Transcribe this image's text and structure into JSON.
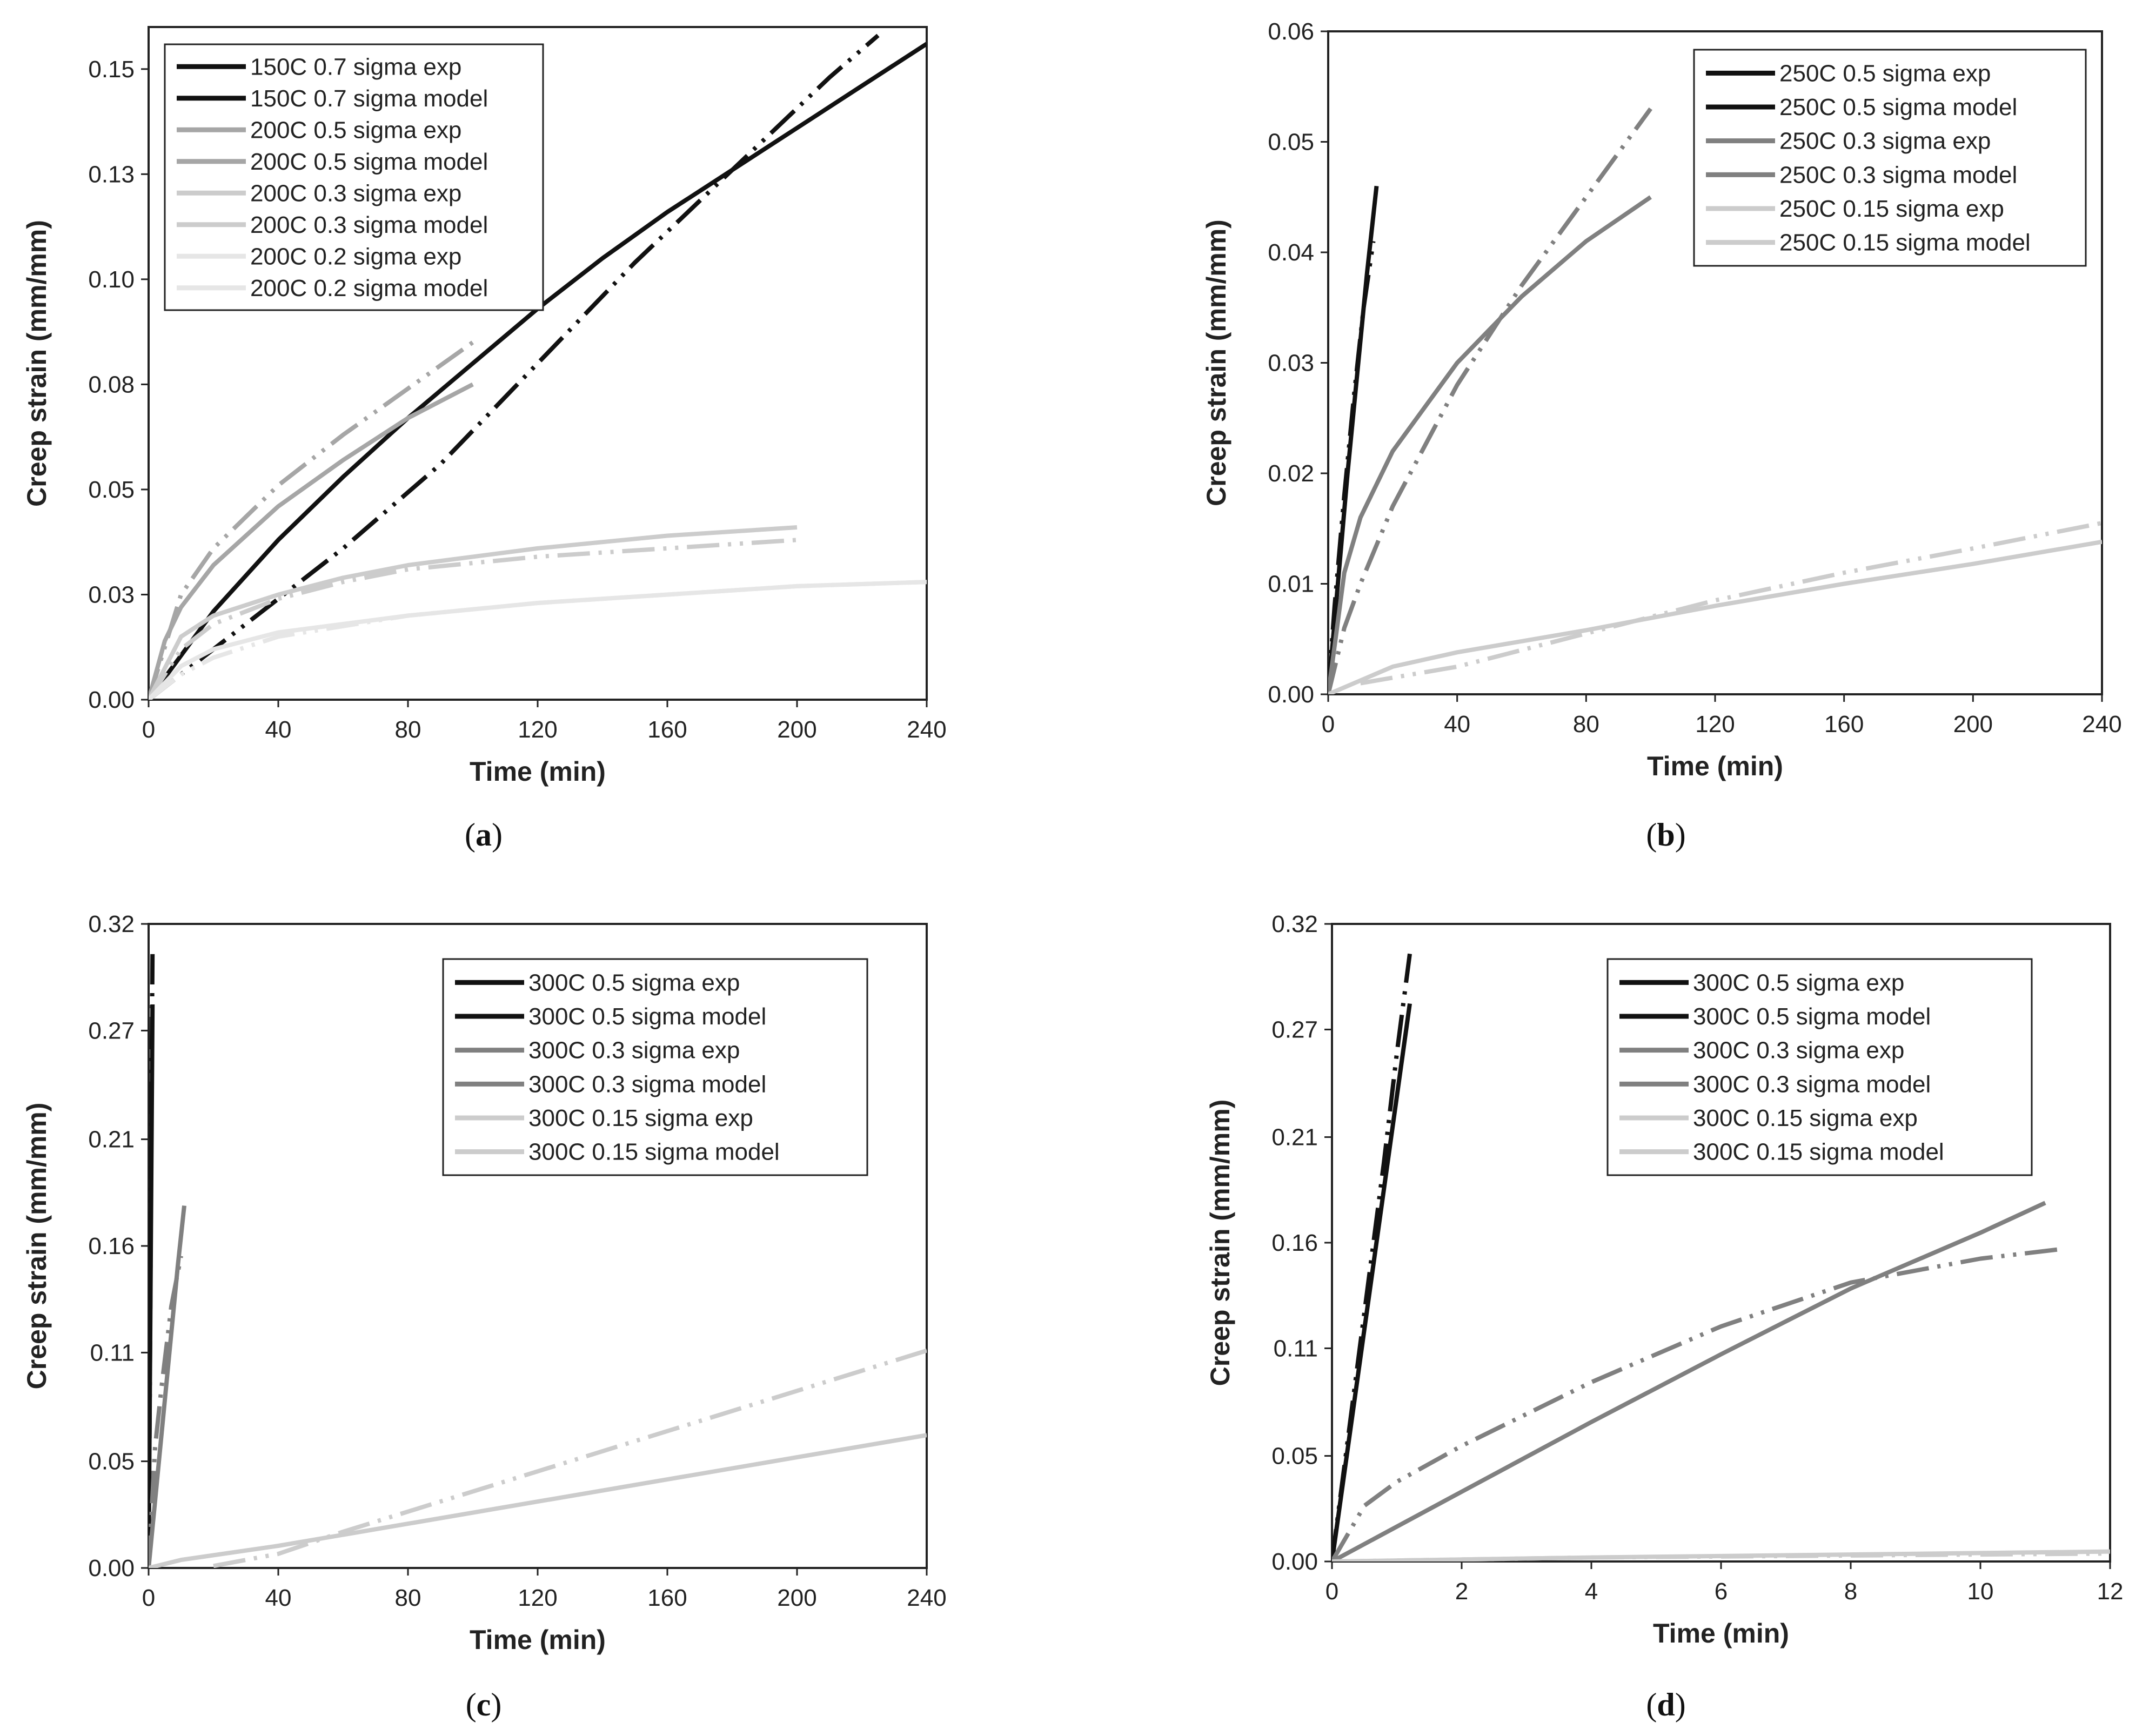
{
  "colors": {
    "black": "#111111",
    "dark_gray": "#808080",
    "mid_gray": "#a6a6a6",
    "light_gray": "#cccccc",
    "lightest_gray": "#e6e6e6"
  },
  "chart_data": [
    {
      "id": "a",
      "type": "line",
      "panel_label": {
        "open": "(",
        "letter": "a",
        "close": ")"
      },
      "xlabel": "Time (min)",
      "ylabel": "Creep strain (mm/mm)",
      "xlim": [
        0,
        240
      ],
      "ylim": [
        0,
        0.16
      ],
      "xticks": [
        0,
        40,
        80,
        120,
        160,
        200,
        240
      ],
      "yticks": [
        0,
        0.025,
        0.05,
        0.075,
        0.1,
        0.125,
        0.15
      ],
      "yticklabels": [
        "0.00",
        "0.03",
        "0.05",
        "0.08",
        "0.10",
        "0.13",
        "0.15"
      ],
      "legend_position": "top-left",
      "series": [
        {
          "name": "150C 0.7 sigma exp",
          "color": "#111111",
          "style": "exp",
          "x": [
            0,
            10,
            30,
            60,
            90,
            120,
            150,
            180,
            210,
            225
          ],
          "y": [
            0,
            0.006,
            0.018,
            0.036,
            0.056,
            0.08,
            0.104,
            0.126,
            0.148,
            0.158
          ]
        },
        {
          "name": "150C 0.7 sigma model",
          "color": "#111111",
          "style": "model",
          "x": [
            0,
            20,
            40,
            60,
            80,
            100,
            120,
            140,
            160,
            180,
            200,
            220,
            240
          ],
          "y": [
            0,
            0.021,
            0.038,
            0.053,
            0.067,
            0.08,
            0.093,
            0.105,
            0.116,
            0.126,
            0.136,
            0.146,
            0.156
          ]
        },
        {
          "name": "200C 0.5 sigma exp",
          "color": "#a6a6a6",
          "style": "exp",
          "x": [
            0,
            10,
            20,
            40,
            60,
            80,
            100
          ],
          "y": [
            0,
            0.025,
            0.036,
            0.051,
            0.063,
            0.074,
            0.085
          ]
        },
        {
          "name": "200C 0.5 sigma model",
          "color": "#a6a6a6",
          "style": "model",
          "x": [
            0,
            5,
            10,
            20,
            40,
            60,
            80,
            100
          ],
          "y": [
            0,
            0.014,
            0.022,
            0.032,
            0.046,
            0.057,
            0.067,
            0.075
          ]
        },
        {
          "name": "200C 0.3 sigma exp",
          "color": "#cccccc",
          "style": "exp",
          "x": [
            0,
            10,
            20,
            40,
            60,
            80,
            120,
            160,
            200
          ],
          "y": [
            0,
            0.012,
            0.018,
            0.024,
            0.028,
            0.031,
            0.034,
            0.036,
            0.038
          ]
        },
        {
          "name": "200C 0.3 sigma model",
          "color": "#cccccc",
          "style": "model",
          "x": [
            0,
            10,
            20,
            40,
            60,
            80,
            120,
            160,
            200
          ],
          "y": [
            0,
            0.015,
            0.02,
            0.025,
            0.029,
            0.032,
            0.036,
            0.039,
            0.041
          ]
        },
        {
          "name": "200C 0.2 sigma exp",
          "color": "#e6e6e6",
          "style": "exp",
          "x": [
            0,
            10,
            20,
            40,
            80,
            120,
            160,
            200,
            240
          ],
          "y": [
            0,
            0.006,
            0.01,
            0.015,
            0.02,
            0.023,
            0.025,
            0.027,
            0.028
          ]
        },
        {
          "name": "200C 0.2 sigma model",
          "color": "#e6e6e6",
          "style": "model",
          "x": [
            0,
            10,
            20,
            40,
            80,
            120,
            160,
            200,
            240
          ],
          "y": [
            0,
            0.008,
            0.012,
            0.016,
            0.02,
            0.023,
            0.025,
            0.027,
            0.028
          ]
        }
      ]
    },
    {
      "id": "b",
      "type": "line",
      "panel_label": {
        "open": "(",
        "letter": "b",
        "close": ")"
      },
      "xlabel": "Time (min)",
      "ylabel": "Creep strain (mm/mm)",
      "xlim": [
        0,
        240
      ],
      "ylim": [
        0,
        0.06
      ],
      "xticks": [
        0,
        40,
        80,
        120,
        160,
        200,
        240
      ],
      "yticks": [
        0,
        0.01,
        0.02,
        0.03,
        0.04,
        0.05,
        0.06
      ],
      "yticklabels": [
        "0.00",
        "0.01",
        "0.02",
        "0.03",
        "0.04",
        "0.05",
        "0.06"
      ],
      "legend_position": "top-right",
      "series": [
        {
          "name": "250C 0.5 sigma exp",
          "color": "#111111",
          "style": "exp",
          "x": [
            0,
            2,
            5,
            8,
            11,
            14
          ],
          "y": [
            0,
            0.008,
            0.018,
            0.027,
            0.035,
            0.041
          ]
        },
        {
          "name": "250C 0.5 sigma model",
          "color": "#111111",
          "style": "model",
          "x": [
            0,
            3,
            6,
            9,
            12,
            15
          ],
          "y": [
            0,
            0.01,
            0.02,
            0.029,
            0.038,
            0.046
          ]
        },
        {
          "name": "250C 0.3 sigma exp",
          "color": "#808080",
          "style": "exp",
          "x": [
            0,
            5,
            10,
            20,
            40,
            60,
            80,
            100
          ],
          "y": [
            0,
            0.006,
            0.01,
            0.017,
            0.028,
            0.037,
            0.045,
            0.053
          ]
        },
        {
          "name": "250C 0.3 sigma model",
          "color": "#808080",
          "style": "model",
          "x": [
            0,
            5,
            10,
            20,
            40,
            60,
            80,
            100
          ],
          "y": [
            0,
            0.011,
            0.016,
            0.022,
            0.03,
            0.036,
            0.041,
            0.045
          ]
        },
        {
          "name": "250C 0.15 sigma exp",
          "color": "#cccccc",
          "style": "exp",
          "x": [
            10,
            40,
            80,
            120,
            160,
            200,
            240
          ],
          "y": [
            0.001,
            0.0025,
            0.0055,
            0.0085,
            0.011,
            0.0132,
            0.0155
          ]
        },
        {
          "name": "250C 0.15 sigma model",
          "color": "#cccccc",
          "style": "model",
          "x": [
            0,
            20,
            40,
            80,
            120,
            160,
            200,
            240
          ],
          "y": [
            0,
            0.0025,
            0.0038,
            0.0058,
            0.008,
            0.01,
            0.0118,
            0.0138
          ]
        }
      ]
    },
    {
      "id": "c",
      "type": "line",
      "panel_label": {
        "open": "(",
        "letter": "c",
        "close": ")"
      },
      "xlabel": "Time (min)",
      "ylabel": "Creep strain (mm/mm)",
      "xlim": [
        0,
        240
      ],
      "ylim": [
        0,
        0.32
      ],
      "xticks": [
        0,
        40,
        80,
        120,
        160,
        200,
        240
      ],
      "yticks": [
        0,
        0.053,
        0.107,
        0.16,
        0.213,
        0.267,
        0.32
      ],
      "yticklabels": [
        "0.00",
        "0.05",
        "0.11",
        "0.16",
        "0.21",
        "0.27",
        "0.32"
      ],
      "legend_position": "top-right",
      "series": [
        {
          "name": "300C 0.5 sigma exp",
          "color": "#111111",
          "style": "exp",
          "x": [
            0,
            0.3,
            0.6,
            0.9,
            1.2
          ],
          "y": [
            0,
            0.07,
            0.15,
            0.24,
            0.305
          ]
        },
        {
          "name": "300C 0.5 sigma model",
          "color": "#111111",
          "style": "model",
          "x": [
            0,
            0.3,
            0.6,
            0.9,
            1.2
          ],
          "y": [
            0,
            0.07,
            0.14,
            0.21,
            0.28
          ]
        },
        {
          "name": "300C 0.3 sigma exp",
          "color": "#808080",
          "style": "exp",
          "x": [
            0,
            2,
            4,
            7,
            10
          ],
          "y": [
            0,
            0.06,
            0.09,
            0.13,
            0.155
          ]
        },
        {
          "name": "300C 0.3 sigma model",
          "color": "#808080",
          "style": "model",
          "x": [
            0,
            3,
            6,
            9,
            11
          ],
          "y": [
            0,
            0.05,
            0.1,
            0.15,
            0.18
          ]
        },
        {
          "name": "300C 0.15 sigma exp",
          "color": "#cccccc",
          "style": "exp",
          "x": [
            20,
            40,
            60,
            80,
            120,
            160,
            200,
            240
          ],
          "y": [
            0.001,
            0.007,
            0.018,
            0.028,
            0.048,
            0.068,
            0.088,
            0.108
          ]
        },
        {
          "name": "300C 0.15 sigma model",
          "color": "#cccccc",
          "style": "model",
          "x": [
            0,
            10,
            40,
            80,
            120,
            160,
            200,
            240
          ],
          "y": [
            0,
            0.004,
            0.011,
            0.022,
            0.033,
            0.044,
            0.055,
            0.066
          ]
        }
      ]
    },
    {
      "id": "d",
      "type": "line",
      "panel_label": {
        "open": "(",
        "letter": "d",
        "close": ")"
      },
      "xlabel": "Time (min)",
      "ylabel": "Creep strain (mm/mm)",
      "xlim": [
        0,
        12
      ],
      "ylim": [
        0,
        0.32
      ],
      "xticks": [
        0,
        2,
        4,
        6,
        8,
        10,
        12
      ],
      "yticks": [
        0,
        0.053,
        0.107,
        0.16,
        0.213,
        0.267,
        0.32
      ],
      "yticklabels": [
        "0.00",
        "0.05",
        "0.11",
        "0.16",
        "0.21",
        "0.27",
        "0.32"
      ],
      "legend_position": "top-right",
      "series": [
        {
          "name": "300C 0.5 sigma exp",
          "color": "#111111",
          "style": "exp",
          "x": [
            0,
            0.2,
            0.4,
            0.6,
            0.8,
            1.0,
            1.2
          ],
          "y": [
            0,
            0.05,
            0.1,
            0.15,
            0.2,
            0.255,
            0.305
          ]
        },
        {
          "name": "300C 0.5 sigma model",
          "color": "#111111",
          "style": "model",
          "x": [
            0,
            0.3,
            0.6,
            0.9,
            1.2
          ],
          "y": [
            0,
            0.07,
            0.14,
            0.21,
            0.28
          ]
        },
        {
          "name": "300C 0.3 sigma exp",
          "color": "#808080",
          "style": "exp",
          "x": [
            0,
            0.5,
            1,
            2,
            4,
            6,
            8,
            10,
            11.3
          ],
          "y": [
            0,
            0.028,
            0.04,
            0.058,
            0.09,
            0.118,
            0.14,
            0.152,
            0.157
          ]
        },
        {
          "name": "300C 0.3 sigma model",
          "color": "#808080",
          "style": "model",
          "x": [
            0,
            2,
            4,
            6,
            8,
            10,
            11
          ],
          "y": [
            0,
            0.035,
            0.07,
            0.104,
            0.137,
            0.165,
            0.18
          ]
        },
        {
          "name": "300C 0.15 sigma exp",
          "color": "#cccccc",
          "style": "exp",
          "x": [
            0,
            4,
            8,
            12
          ],
          "y": [
            0,
            0.002,
            0.003,
            0.004
          ]
        },
        {
          "name": "300C 0.15 sigma model",
          "color": "#cccccc",
          "style": "model",
          "x": [
            0,
            4,
            8,
            12
          ],
          "y": [
            0,
            0.002,
            0.0035,
            0.005
          ]
        }
      ]
    }
  ]
}
